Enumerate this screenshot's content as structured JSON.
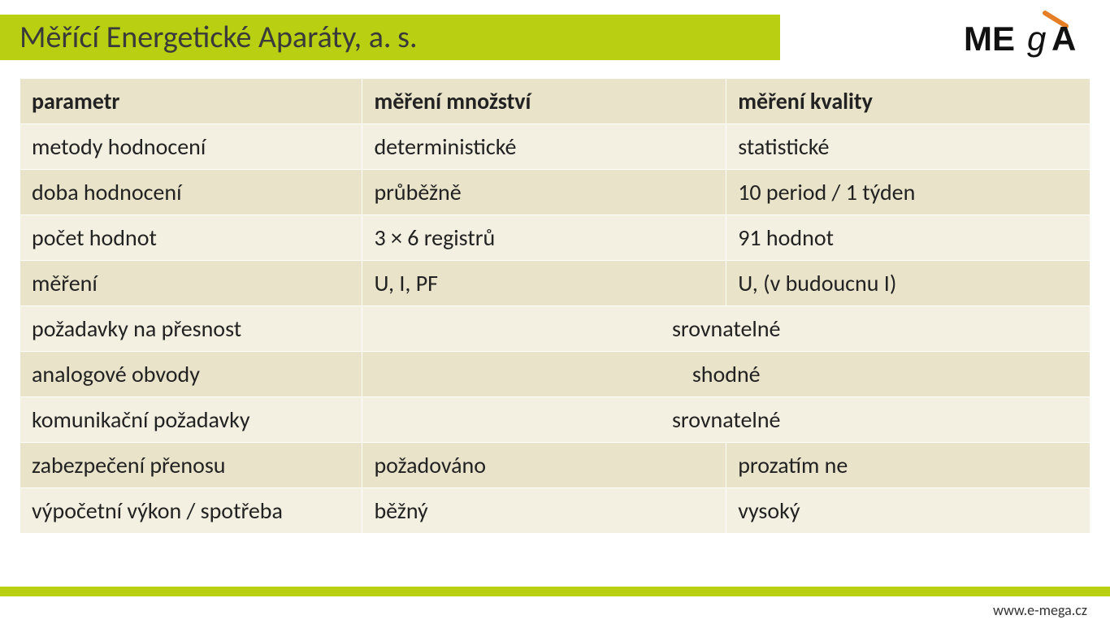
{
  "colors": {
    "accent": "#b9cf12",
    "row_base": "#f3f0e1",
    "row_alt": "#e9e3ca",
    "text": "#222222"
  },
  "header": {
    "title": "Měřící Energetické Aparáty, a. s.",
    "logo_text_left": "ME",
    "logo_text_right": "A"
  },
  "table": {
    "columns": [
      "parametr",
      "měření množství",
      "měření kvality"
    ],
    "rows": [
      {
        "cells": [
          "metody hodnocení",
          "deterministické",
          "statistické"
        ],
        "merged": false
      },
      {
        "cells": [
          "doba hodnocení",
          "průběžně",
          "10 period / 1 týden"
        ],
        "merged": false
      },
      {
        "cells": [
          "počet hodnot",
          "3 × 6 registrů",
          "91 hodnot"
        ],
        "merged": false
      },
      {
        "cells": [
          "měření",
          "U, I, PF",
          "U, (v budoucnu I)"
        ],
        "merged": false
      },
      {
        "cells": [
          "požadavky na přesnost",
          "srovnatelné"
        ],
        "merged": true
      },
      {
        "cells": [
          "analogové obvody",
          "shodné"
        ],
        "merged": true
      },
      {
        "cells": [
          "komunikační požadavky",
          "srovnatelné"
        ],
        "merged": true
      },
      {
        "cells": [
          "zabezpečení přenosu",
          "požadováno",
          "prozatím ne"
        ],
        "merged": false
      },
      {
        "cells": [
          "výpočetní výkon / spotřeba",
          "běžný",
          "vysoký"
        ],
        "merged": false
      }
    ]
  },
  "footer": {
    "url": "www.e-mega.cz"
  }
}
